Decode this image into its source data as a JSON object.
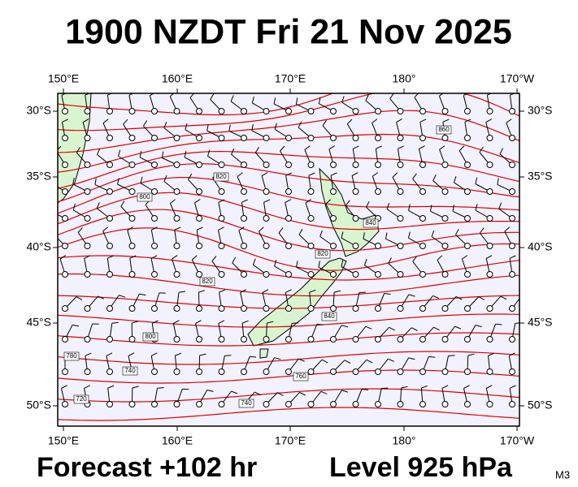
{
  "header": {
    "title": "1900 NZDT Fri 21 Nov 2025"
  },
  "map": {
    "top_labels": [
      "150°E",
      "160°E",
      "170°E",
      "180°",
      "170°W"
    ],
    "bottom_labels": [
      "150°E",
      "160°E",
      "170°E",
      "180°",
      "170°W"
    ],
    "left_labels": [
      "30°S",
      "35°S",
      "40°S",
      "45°S",
      "50°S"
    ],
    "right_labels": [
      "30°S",
      "35°S",
      "40°S",
      "45°S",
      "50°S"
    ],
    "contour_labels": [
      "860",
      "820",
      "800",
      "840",
      "820",
      "820",
      "840",
      "800",
      "780",
      "740",
      "760",
      "720",
      "740"
    ]
  },
  "footer": {
    "forecast": "Forecast +102 hr",
    "level": "Level 925 hPa",
    "code": "M3"
  }
}
